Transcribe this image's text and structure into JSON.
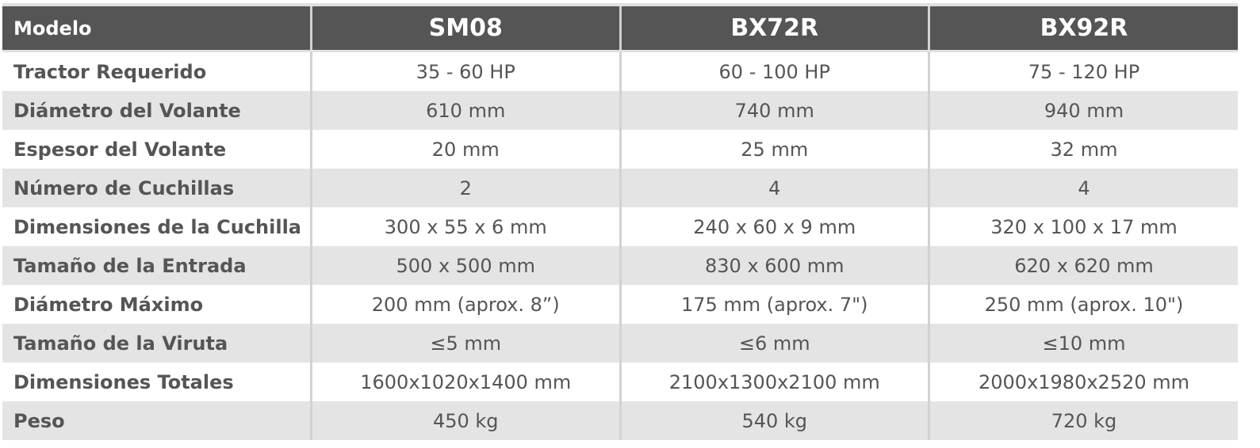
{
  "table": {
    "headers": [
      "Modelo",
      "SM08",
      "BX72R",
      "BX92R"
    ],
    "rows": [
      [
        "Tractor Requerido",
        "35 - 60 HP",
        "60 - 100 HP",
        "75 - 120 HP"
      ],
      [
        "Diámetro del Volante",
        "610 mm",
        "740 mm",
        "940 mm"
      ],
      [
        "Espesor del Volante",
        "20 mm",
        "25 mm",
        "32 mm"
      ],
      [
        "Número de Cuchillas",
        "2",
        "4",
        "4"
      ],
      [
        "Dimensiones de la Cuchilla",
        "300 x 55 x 6 mm",
        "240 x 60 x 9 mm",
        "320 x 100 x 17 mm"
      ],
      [
        "Tamaño de la Entrada",
        "500 x 500 mm",
        "830 x 600 mm",
        "620 x 620 mm"
      ],
      [
        "Diámetro Máximo",
        "200 mm (aprox. 8”)",
        "175 mm (aprox. 7\")",
        "250 mm (aprox. 10\")"
      ],
      [
        "Tamaño de la Viruta",
        "≤5 mm",
        "≤6 mm",
        "≤10 mm"
      ],
      [
        "Dimensiones Totales",
        "1600x1020x1400 mm",
        "2100x1300x2100 mm",
        "2000x1980x2520 mm"
      ],
      [
        "Peso",
        "450 kg",
        "540 kg",
        "720 kg"
      ]
    ]
  },
  "colors": {
    "header_bg": "#555555",
    "stripe_bg": "#e4e4e4",
    "text": "#555555"
  }
}
